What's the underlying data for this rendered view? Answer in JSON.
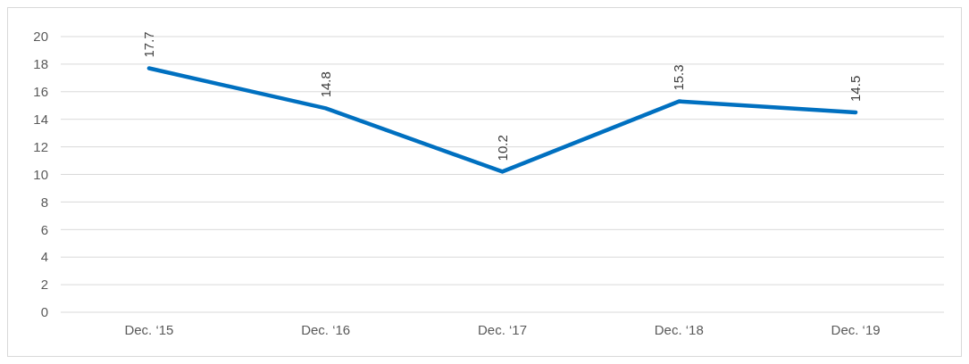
{
  "chart_data": {
    "type": "line",
    "categories": [
      "Dec. ‘15",
      "Dec. ‘16",
      "Dec. ‘17",
      "Dec. ‘18",
      "Dec. ‘19"
    ],
    "series": [
      {
        "color": "#0070c0",
        "values": [
          17.7,
          14.8,
          10.2,
          15.3,
          14.5
        ]
      }
    ],
    "ylim": [
      0,
      20
    ],
    "yticks": [
      0,
      2,
      4,
      6,
      8,
      10,
      12,
      14,
      16,
      18,
      20
    ],
    "grid": "y",
    "data_labels": true,
    "marker": "none",
    "line_style": "solid"
  }
}
